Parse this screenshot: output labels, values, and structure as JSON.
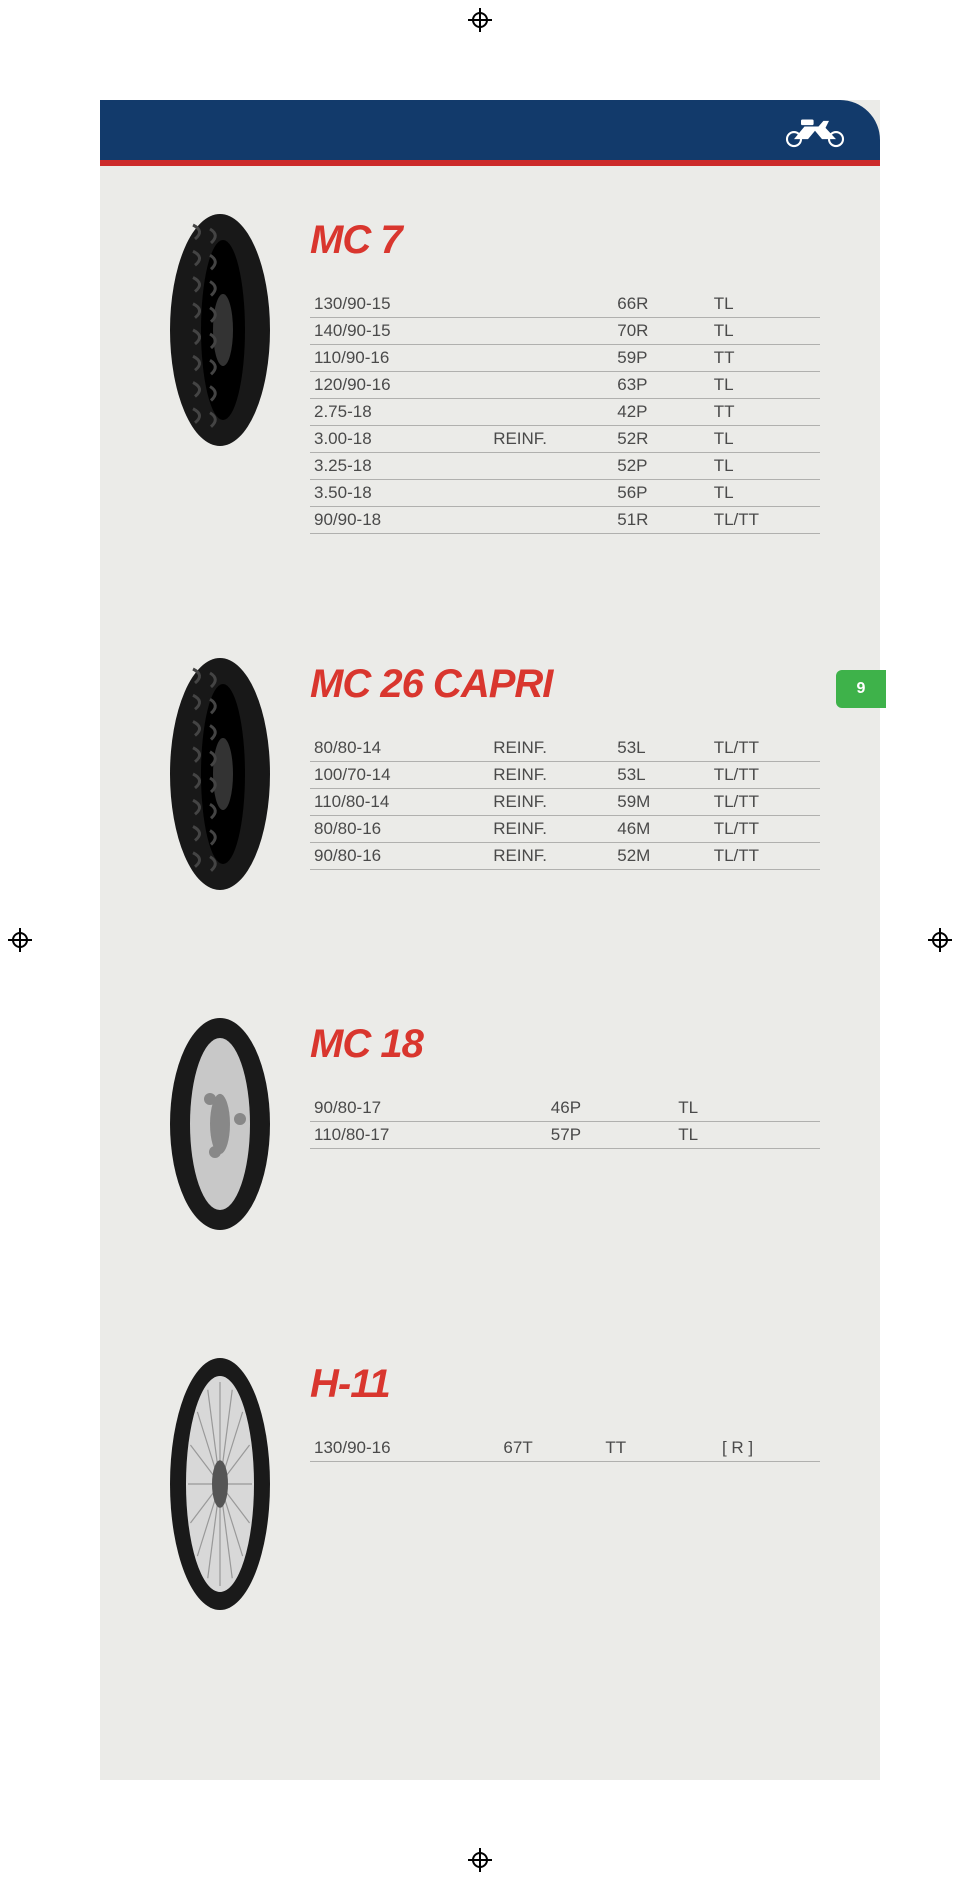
{
  "page_number": "9",
  "colors": {
    "header_bg": "#123a6b",
    "accent_red": "#cc2a2a",
    "title_red": "#d9362e",
    "page_bg": "#ebebe8",
    "tab_green": "#3eb24a",
    "text": "#4a4a4a",
    "row_border": "#b0b0ae"
  },
  "products": [
    {
      "title": "MC 7",
      "tire_style": "tread",
      "columns": [
        "size",
        "note",
        "load",
        "type"
      ],
      "rows": [
        {
          "size": "130/90-15",
          "note": "",
          "load": "66R",
          "type": "TL"
        },
        {
          "size": "140/90-15",
          "note": "",
          "load": "70R",
          "type": "TL"
        },
        {
          "size": "110/90-16",
          "note": "",
          "load": "59P",
          "type": "TT"
        },
        {
          "size": "120/90-16",
          "note": "",
          "load": "63P",
          "type": "TL"
        },
        {
          "size": "2.75-18",
          "note": "",
          "load": "42P",
          "type": "TT"
        },
        {
          "size": "3.00-18",
          "note": "REINF.",
          "load": "52R",
          "type": "TL"
        },
        {
          "size": "3.25-18",
          "note": "",
          "load": "52P",
          "type": "TL"
        },
        {
          "size": "3.50-18",
          "note": "",
          "load": "56P",
          "type": "TL"
        },
        {
          "size": "90/90-18",
          "note": "",
          "load": "51R",
          "type": "TL/TT"
        }
      ]
    },
    {
      "title": "MC 26 CAPRI",
      "tire_style": "tread",
      "columns": [
        "size",
        "note",
        "load",
        "type"
      ],
      "rows": [
        {
          "size": "80/80-14",
          "note": "REINF.",
          "load": "53L",
          "type": "TL/TT"
        },
        {
          "size": "100/70-14",
          "note": "REINF.",
          "load": "53L",
          "type": "TL/TT"
        },
        {
          "size": "110/80-14",
          "note": "REINF.",
          "load": "59M",
          "type": "TL/TT"
        },
        {
          "size": "80/80-16",
          "note": "REINF.",
          "load": "46M",
          "type": "TL/TT"
        },
        {
          "size": "90/80-16",
          "note": "REINF.",
          "load": "52M",
          "type": "TL/TT"
        }
      ]
    },
    {
      "title": "MC 18",
      "tire_style": "scooter",
      "columns": [
        "size",
        "load",
        "type"
      ],
      "rows": [
        {
          "size": "90/80-17",
          "load": "46P",
          "type": "TL"
        },
        {
          "size": "110/80-17",
          "load": "57P",
          "type": "TL"
        }
      ]
    },
    {
      "title": "H-11",
      "tire_style": "spoke",
      "columns": [
        "size",
        "load",
        "type",
        "extra"
      ],
      "rows": [
        {
          "size": "130/90-16",
          "load": "67T",
          "type": "TT",
          "extra": "[ R ]"
        }
      ]
    }
  ]
}
